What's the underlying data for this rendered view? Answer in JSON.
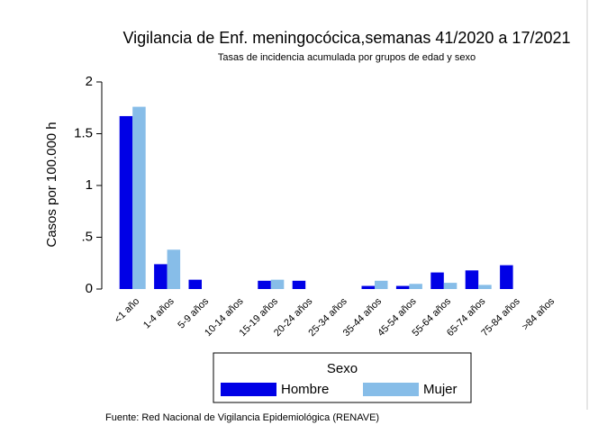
{
  "chart_data": {
    "type": "bar",
    "title": "Vigilancia de Enf. meningocócica,semanas 41/2020 a 17/2021",
    "subtitle": "Tasas de incidencia acumulada por grupos de edad y sexo",
    "y_label": "Casos por 100.000 h",
    "source": "Fuente: Red Nacional de Vigilancia Epidemiológica (RENAVE)",
    "legend_title": "Sexo",
    "categories": [
      "<1 año",
      "1-4 años",
      "5-9 años",
      "10-14 años",
      "15-19 años",
      "20-24 años",
      "25-34 años",
      "35-44 años",
      "45-54 años",
      "55-64 años",
      "65-74 años",
      "75-84 años",
      ">84 años"
    ],
    "series": [
      {
        "name": "Hombre",
        "color": "#0000e6",
        "values": [
          1.67,
          0.24,
          0.09,
          0,
          0.08,
          0.08,
          0,
          0.03,
          0.03,
          0.16,
          0.18,
          0.23,
          0
        ]
      },
      {
        "name": "Mujer",
        "color": "#87bde8",
        "values": [
          1.76,
          0.38,
          0,
          0,
          0.09,
          0,
          0,
          0.08,
          0.05,
          0.06,
          0.04,
          0,
          0
        ]
      }
    ],
    "ylim": [
      0,
      2
    ],
    "yticks": [
      0,
      {
        "value": 0.5,
        "label": ".5"
      },
      1,
      1.5,
      2
    ]
  }
}
